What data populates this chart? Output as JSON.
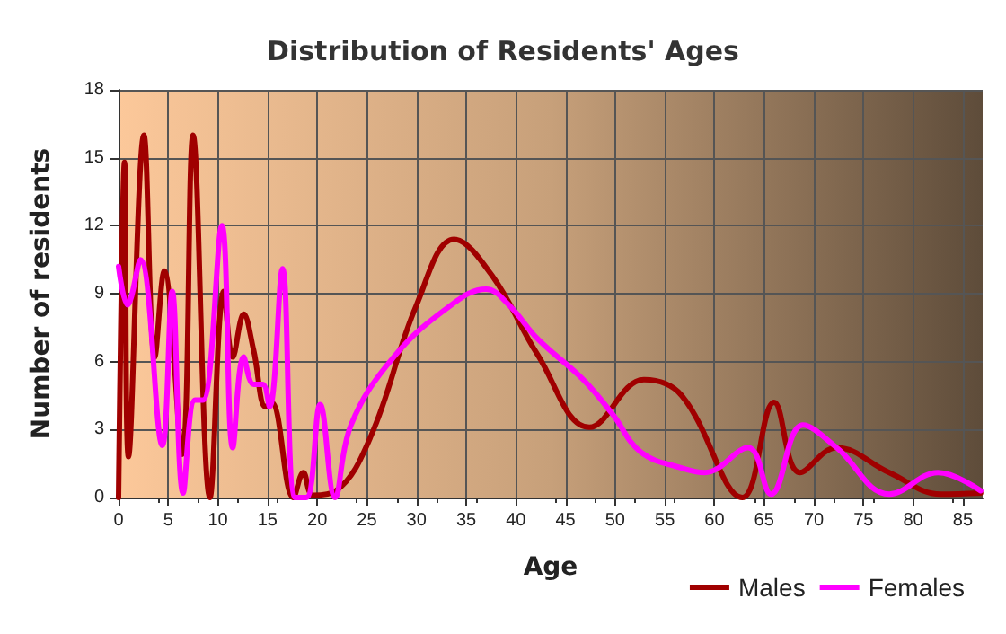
{
  "chart_data": {
    "type": "line",
    "title": "Distribution of Residents' Ages",
    "xlabel": "Age",
    "ylabel": "Number of residents",
    "xlim": [
      0,
      87
    ],
    "xticks": [
      0,
      5,
      10,
      15,
      20,
      25,
      30,
      35,
      40,
      45,
      50,
      55,
      60,
      65,
      70,
      75,
      80,
      85
    ],
    "ylim": [
      0,
      18
    ],
    "yticks": [
      0,
      3,
      6,
      9,
      12,
      15,
      18
    ],
    "grid": true,
    "legend": "bottom right",
    "marker": "none",
    "line_style": "solid",
    "series": [
      {
        "name": "Males",
        "color": "#a00000",
        "x": [
          0,
          0.6,
          1.0,
          2.55,
          3.65,
          4.6,
          6.4,
          7.5,
          9.2,
          10.6,
          11.5,
          12.6,
          13.6,
          14.8,
          15.4,
          17.6,
          18.6,
          19.6,
          21.9,
          25.4,
          30,
          33.8,
          37.6,
          42.2,
          47.4,
          52.9,
          56.7,
          62.8,
          66,
          68.6,
          72.3,
          77.6,
          82.8,
          86.8
        ],
        "values": [
          0,
          14.8,
          1.8,
          16,
          6.2,
          10,
          1.9,
          16,
          0,
          9.1,
          6.2,
          8.1,
          6.5,
          4.0,
          4.2,
          0,
          1.1,
          0.1,
          0.3,
          2.7,
          8.5,
          11.4,
          9.8,
          6.3,
          3.1,
          5.2,
          4.5,
          0,
          4.2,
          1.1,
          2.2,
          1.1,
          0.15,
          0.2
        ]
      },
      {
        "name": "Females",
        "color": "#ff00ff",
        "x": [
          0,
          0.9,
          2.2,
          4.4,
          5.4,
          6.5,
          7.7,
          8.5,
          10.4,
          11.5,
          12.6,
          13.6,
          14.5,
          15.2,
          16.5,
          17.8,
          18.9,
          20.3,
          21.8,
          23.4,
          27.7,
          33.5,
          37,
          39.3,
          42.2,
          46.8,
          49.7,
          52.6,
          56.7,
          59,
          63.4,
          65.7,
          68.9,
          72.3,
          77.6,
          82.5,
          86.8
        ],
        "values": [
          10.2,
          8.5,
          10.5,
          2.3,
          9.1,
          0.2,
          4.3,
          4.3,
          12,
          2.2,
          6.2,
          5,
          5,
          4,
          10.1,
          0,
          0,
          4.1,
          0,
          3.2,
          6.2,
          8.5,
          9.2,
          8.5,
          7.0,
          5.2,
          3.7,
          2.0,
          1.3,
          1.1,
          2.2,
          0.15,
          3.2,
          2.2,
          0.15,
          1.1,
          0.3
        ]
      }
    ]
  }
}
